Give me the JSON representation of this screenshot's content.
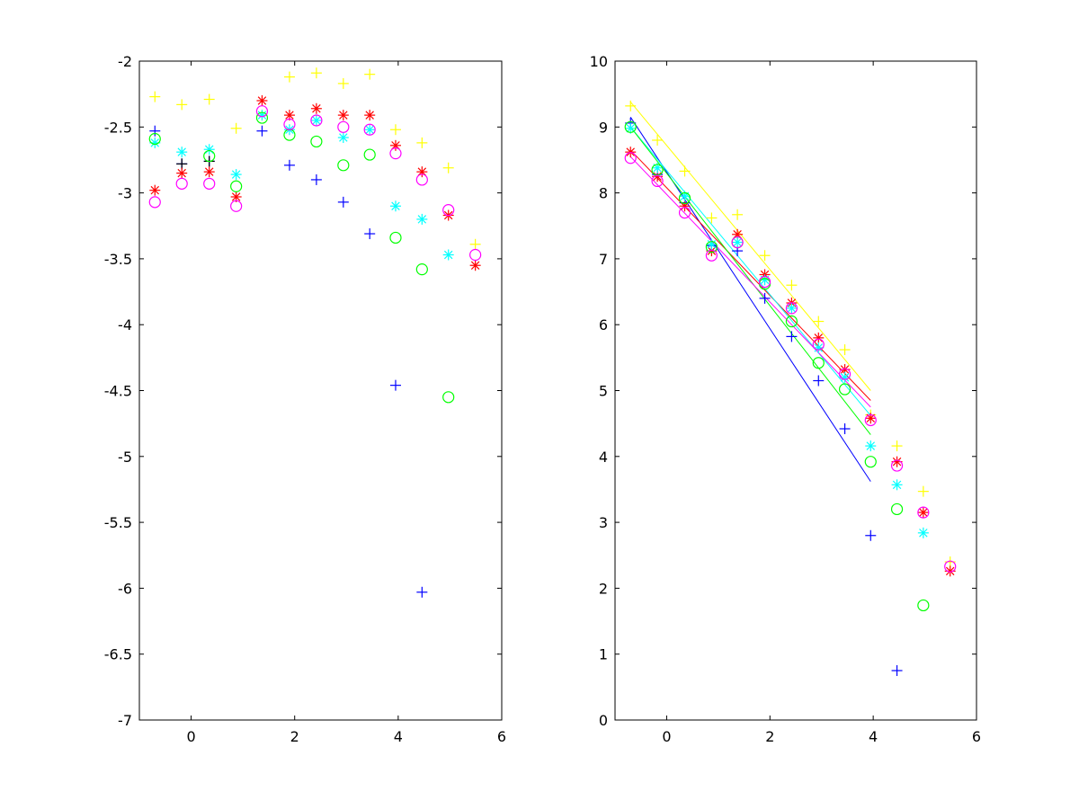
{
  "chart_data": [
    {
      "type": "scatter",
      "xlim": [
        -1,
        6
      ],
      "ylim": [
        -7,
        -2
      ],
      "xticks": [
        0,
        2,
        4,
        6
      ],
      "yticks": [
        -7,
        -6.5,
        -6,
        -5.5,
        -5,
        -4.5,
        -4,
        -3.5,
        -3,
        -2.5,
        -2
      ],
      "xtick_labels": [
        "0",
        "2",
        "4",
        "6"
      ],
      "ytick_labels": [
        "-7",
        "-6.5",
        "-6",
        "-5.5",
        "-5",
        "-4.5",
        "-4",
        "-3.5",
        "-3",
        "-2.5",
        "-2"
      ],
      "grid": false,
      "series": [
        {
          "color": "#0000ff",
          "marker": "plus",
          "x": [
            -0.7,
            -0.18,
            0.35,
            1.37,
            1.9,
            2.42,
            2.94,
            3.45,
            3.95,
            4.46
          ],
          "y": [
            -2.53,
            -2.78,
            -2.76,
            -2.53,
            -2.79,
            -2.9,
            -3.07,
            -3.31,
            -4.46,
            -6.03
          ]
        },
        {
          "color": "#000000",
          "marker": "plus",
          "x": [
            -0.18,
            0.35
          ],
          "y": [
            -2.78,
            -2.76
          ]
        },
        {
          "color": "#ffff00",
          "marker": "plus",
          "x": [
            -0.7,
            -0.18,
            0.35,
            0.87,
            1.37,
            1.9,
            2.42,
            2.94,
            3.45,
            3.95,
            4.46,
            4.97,
            5.49
          ],
          "y": [
            -2.27,
            -2.33,
            -2.29,
            -2.51,
            -2.41,
            -2.12,
            -2.09,
            -2.17,
            -2.1,
            -2.52,
            -2.62,
            -2.81,
            -3.39
          ]
        },
        {
          "color": "#ff0000",
          "marker": "star",
          "x": [
            -0.7,
            -0.18,
            0.35,
            0.87,
            1.37,
            1.9,
            2.42,
            2.94,
            3.45,
            3.95,
            4.46,
            4.97,
            5.49
          ],
          "y": [
            -2.98,
            -2.85,
            -2.84,
            -3.03,
            -2.3,
            -2.41,
            -2.36,
            -2.41,
            -2.41,
            -2.64,
            -2.84,
            -3.17,
            -3.55
          ]
        },
        {
          "color": "#00ffff",
          "marker": "star",
          "x": [
            -0.7,
            -0.18,
            0.35,
            0.87,
            1.37,
            1.9,
            2.42,
            2.94,
            3.45,
            3.95,
            4.46,
            4.97
          ],
          "y": [
            -2.62,
            -2.69,
            -2.67,
            -2.86,
            -2.41,
            -2.52,
            -2.45,
            -2.58,
            -2.52,
            -3.1,
            -3.2,
            -3.47
          ]
        },
        {
          "color": "#00ff00",
          "marker": "circle",
          "x": [
            -0.7,
            0.35,
            0.87,
            1.37,
            1.9,
            2.42,
            2.94,
            3.45,
            3.95,
            4.46,
            4.97
          ],
          "y": [
            -2.59,
            -2.72,
            -2.95,
            -2.43,
            -2.56,
            -2.61,
            -2.79,
            -2.71,
            -3.34,
            -3.58,
            -4.55
          ]
        },
        {
          "color": "#ff00ff",
          "marker": "circle",
          "x": [
            -0.7,
            -0.18,
            0.35,
            0.87,
            1.37,
            1.9,
            2.42,
            2.94,
            3.45,
            3.95,
            4.46,
            4.97,
            5.49
          ],
          "y": [
            -3.07,
            -2.93,
            -2.93,
            -3.1,
            -2.38,
            -2.48,
            -2.45,
            -2.5,
            -2.52,
            -2.7,
            -2.9,
            -3.13,
            -3.47
          ]
        }
      ]
    },
    {
      "type": "scatter",
      "xlim": [
        -1,
        6
      ],
      "ylim": [
        0,
        10
      ],
      "xticks": [
        0,
        2,
        4,
        6
      ],
      "yticks": [
        0,
        1,
        2,
        3,
        4,
        5,
        6,
        7,
        8,
        9,
        10
      ],
      "xtick_labels": [
        "0",
        "2",
        "4",
        "6"
      ],
      "ytick_labels": [
        "0",
        "1",
        "2",
        "3",
        "4",
        "5",
        "6",
        "7",
        "8",
        "9",
        "10"
      ],
      "grid": false,
      "series": [
        {
          "color": "#0000ff",
          "marker": "plus",
          "x": [
            -0.7,
            -0.18,
            0.35,
            0.87,
            1.37,
            1.9,
            2.42,
            2.94,
            3.45,
            3.95,
            4.46
          ],
          "y": [
            9.06,
            8.28,
            7.85,
            7.2,
            7.12,
            6.4,
            5.82,
            5.15,
            4.42,
            2.8,
            0.75
          ],
          "fit": {
            "x": [
              -0.7,
              3.95
            ],
            "y": [
              9.15,
              3.62
            ]
          }
        },
        {
          "color": "#ffff00",
          "marker": "plus",
          "x": [
            -0.7,
            -0.18,
            0.35,
            0.87,
            1.37,
            1.9,
            2.42,
            2.94,
            3.45,
            3.95,
            4.46,
            4.97,
            5.49
          ],
          "y": [
            9.32,
            8.8,
            8.33,
            7.62,
            7.67,
            7.05,
            6.6,
            6.05,
            5.62,
            4.63,
            4.16,
            3.47,
            2.4
          ],
          "fit": {
            "x": [
              -0.7,
              3.95
            ],
            "y": [
              9.38,
              5.0
            ]
          }
        },
        {
          "color": "#ff0000",
          "marker": "star",
          "x": [
            -0.7,
            -0.18,
            0.35,
            0.87,
            1.37,
            1.9,
            2.42,
            2.94,
            3.45,
            3.95,
            4.46,
            4.97,
            5.49
          ],
          "y": [
            8.62,
            8.25,
            7.8,
            7.12,
            7.37,
            6.76,
            6.33,
            5.8,
            5.32,
            4.58,
            3.92,
            3.15,
            2.26
          ],
          "fit": {
            "x": [
              -0.7,
              3.95
            ],
            "y": [
              8.65,
              4.85
            ]
          }
        },
        {
          "color": "#00ffff",
          "marker": "star",
          "x": [
            -0.7,
            -0.18,
            0.35,
            0.87,
            1.37,
            1.9,
            2.42,
            2.94,
            3.45,
            3.95,
            4.46,
            4.97
          ],
          "y": [
            8.98,
            8.38,
            7.95,
            7.22,
            7.25,
            6.68,
            6.25,
            5.65,
            5.2,
            4.16,
            3.57,
            2.84
          ],
          "fit": {
            "x": [
              -0.7,
              3.95
            ],
            "y": [
              9.0,
              4.62
            ]
          }
        },
        {
          "color": "#00ff00",
          "marker": "circle",
          "x": [
            -0.7,
            -0.18,
            0.35,
            0.87,
            1.37,
            1.9,
            2.42,
            2.94,
            3.45,
            3.95,
            4.46,
            4.97
          ],
          "y": [
            9.0,
            8.35,
            7.92,
            7.18,
            7.25,
            6.62,
            6.05,
            5.42,
            5.02,
            3.92,
            3.2,
            1.74
          ],
          "fit": {
            "x": [
              -0.7,
              3.95
            ],
            "y": [
              9.0,
              4.33
            ]
          }
        },
        {
          "color": "#ff00ff",
          "marker": "circle",
          "x": [
            -0.7,
            -0.18,
            0.35,
            0.87,
            1.37,
            1.9,
            2.42,
            2.94,
            3.45,
            3.95,
            4.46,
            4.97,
            5.49
          ],
          "y": [
            8.53,
            8.18,
            7.7,
            7.05,
            7.25,
            6.65,
            6.25,
            5.7,
            5.25,
            4.55,
            3.86,
            3.15,
            2.33
          ],
          "fit": {
            "x": [
              -0.7,
              3.95
            ],
            "y": [
              8.55,
              4.75
            ]
          }
        }
      ]
    }
  ]
}
